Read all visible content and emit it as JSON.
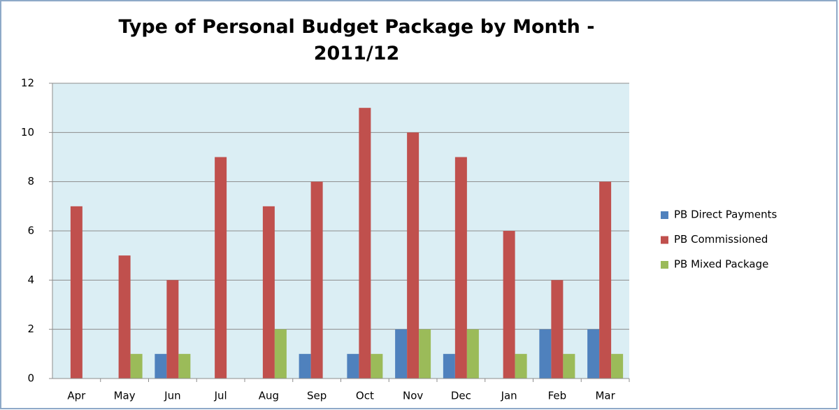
{
  "chart_data": {
    "type": "bar",
    "title": "Type of Personal Budget Package by Month - 2011/12",
    "categories": [
      "Apr",
      "May",
      "Jun",
      "Jul",
      "Aug",
      "Sep",
      "Oct",
      "Nov",
      "Dec",
      "Jan",
      "Feb",
      "Mar"
    ],
    "series": [
      {
        "name": "PB Direct Payments",
        "color": "#4f81bd",
        "values": [
          0,
          0,
          1,
          0,
          0,
          1,
          1,
          2,
          1,
          0,
          2,
          2
        ]
      },
      {
        "name": "PB Commissioned",
        "color": "#c0504d",
        "values": [
          7,
          5,
          4,
          9,
          7,
          8,
          11,
          10,
          9,
          6,
          4,
          8
        ]
      },
      {
        "name": "PB Mixed Package",
        "color": "#9bbb59",
        "values": [
          0,
          1,
          1,
          0,
          2,
          0,
          1,
          2,
          2,
          1,
          1,
          1
        ]
      }
    ],
    "ylim": [
      0,
      12
    ],
    "yticks": [
      0,
      2,
      4,
      6,
      8,
      10,
      12
    ],
    "grid": true,
    "legend": "right"
  }
}
